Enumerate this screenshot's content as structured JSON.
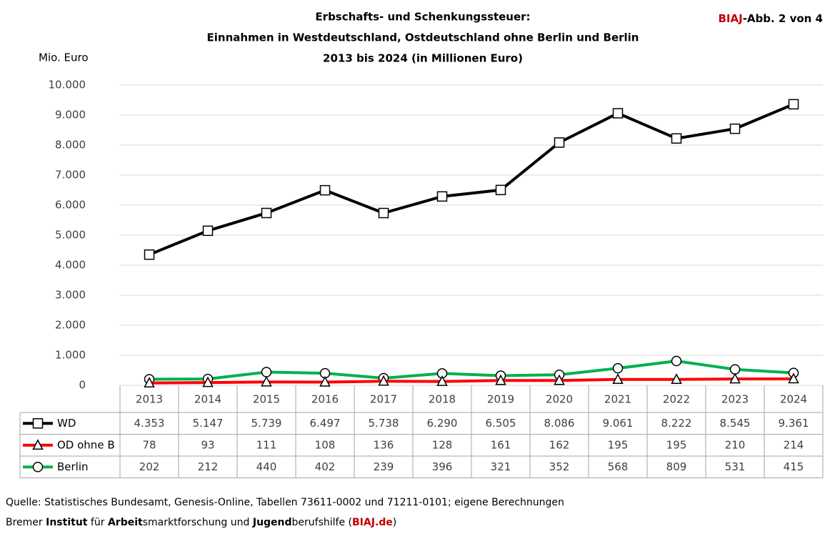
{
  "chart_data": {
    "type": "line",
    "title_lines": [
      "Erbschafts- und Schenkungssteuer:",
      "Einnahmen in Westdeutschland, Ostdeutschland ohne Berlin und Berlin",
      "2013 bis 2024 (in Millionen Euro)"
    ],
    "badge": [
      "BIAJ",
      "-Abb. 2 von 4"
    ],
    "y_label": "Mio. Euro",
    "categories": [
      "2013",
      "2014",
      "2015",
      "2016",
      "2017",
      "2018",
      "2019",
      "2020",
      "2021",
      "2022",
      "2023",
      "2024"
    ],
    "ylim": [
      0,
      10000
    ],
    "yticks": [
      0,
      {
        "value": 1000,
        "label": "1.000"
      },
      {
        "value": 2000,
        "label": "2.000"
      },
      {
        "value": 3000,
        "label": "3.000"
      },
      {
        "value": 4000,
        "label": "4.000"
      },
      {
        "value": 5000,
        "label": "5.000"
      },
      {
        "value": 6000,
        "label": "6.000"
      },
      {
        "value": 7000,
        "label": "7.000"
      },
      {
        "value": 8000,
        "label": "8.000"
      },
      {
        "value": 9000,
        "label": "9.000"
      },
      {
        "value": 10000,
        "label": "10.000"
      }
    ],
    "grid": true,
    "series": [
      {
        "name": "WD",
        "color": "#000000",
        "marker": "square",
        "values": [
          4353,
          5147,
          5739,
          6497,
          5738,
          6290,
          6505,
          8086,
          9061,
          8222,
          8545,
          9361
        ],
        "value_labels": [
          "4.353",
          "5.147",
          "5.739",
          "6.497",
          "5.738",
          "6.290",
          "6.505",
          "8.086",
          "9.061",
          "8.222",
          "8.545",
          "9.361"
        ]
      },
      {
        "name": "OD ohne B",
        "color": "#ff0000",
        "marker": "triangle",
        "values": [
          78,
          93,
          111,
          108,
          136,
          128,
          161,
          162,
          195,
          195,
          210,
          214
        ]
      },
      {
        "name": "Berlin",
        "color": "#00b050",
        "marker": "circle",
        "values": [
          202,
          212,
          440,
          402,
          239,
          396,
          321,
          352,
          568,
          809,
          531,
          415
        ]
      }
    ],
    "source": "Quelle: Statistisches Bundesamt, Genesis-Online, Tabellen 73611-0002 und  71211-0101; eigene Berechnungen",
    "credit_parts": [
      "Bremer ",
      "Institut",
      " für ",
      "Arbeit",
      "smarktforschung und ",
      "Jugend",
      "berufshilfe (",
      "BIAJ.de",
      ")"
    ]
  }
}
